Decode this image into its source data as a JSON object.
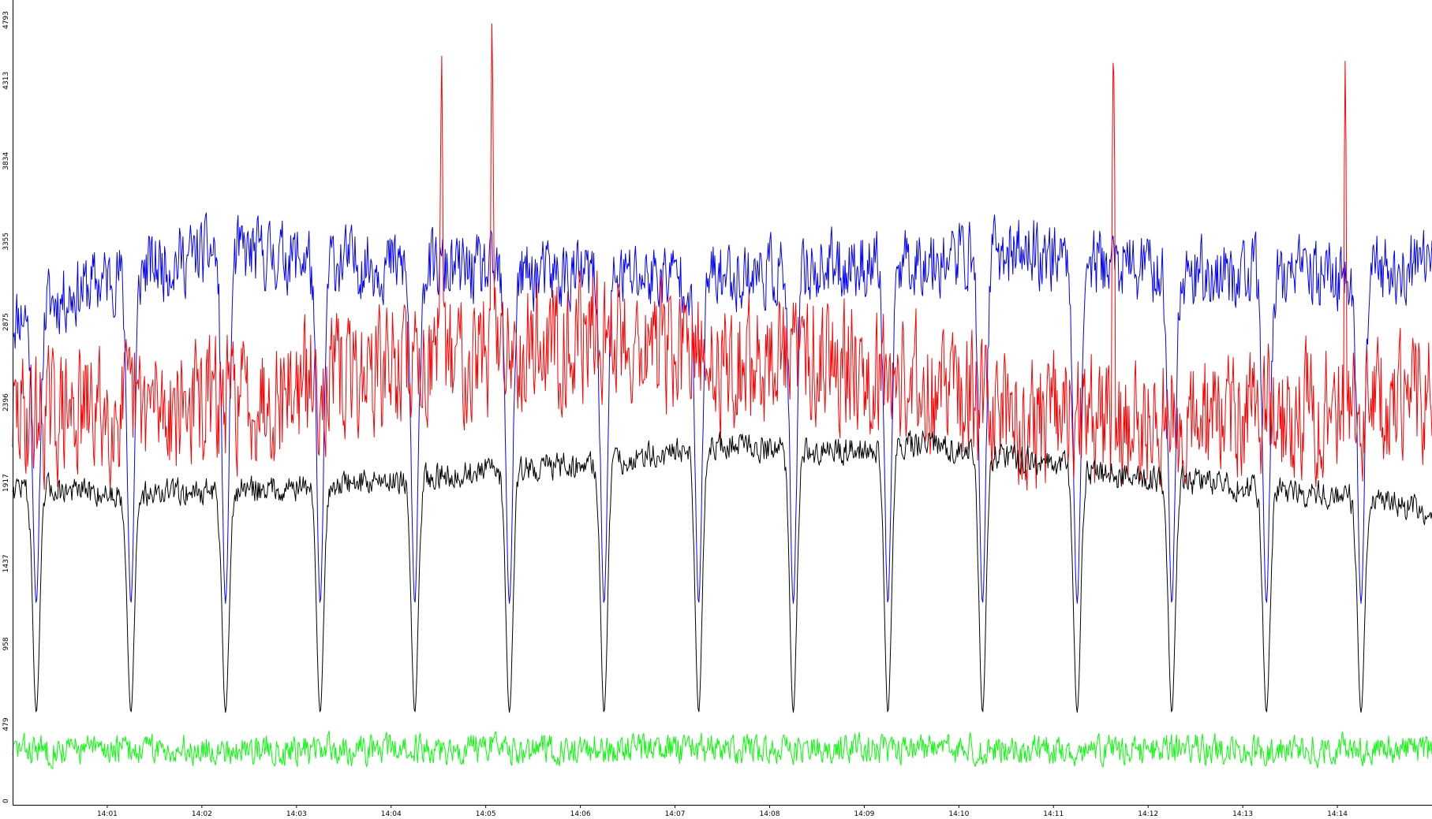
{
  "chart_data": {
    "type": "line",
    "title": "",
    "xlabel": "",
    "ylabel": "",
    "ylim": [
      0,
      4793
    ],
    "xlim": [
      "14:00:00",
      "14:15:00"
    ],
    "yticks": [
      0,
      479,
      958,
      1437,
      1917,
      2396,
      2875,
      3355,
      3834,
      4313,
      4793
    ],
    "xticks": [
      "14:01",
      "14:02",
      "14:03",
      "14:04",
      "14:05",
      "14:06",
      "14:07",
      "14:08",
      "14:09",
      "14:10",
      "14:11",
      "14:12",
      "14:13",
      "14:14"
    ],
    "grid": false,
    "legend": "none",
    "series": [
      {
        "color": "#0000ff",
        "baseline_values": [
          2900,
          3150,
          3300,
          3250,
          3200,
          3150,
          3150,
          3150,
          3200,
          3250,
          3300,
          3200,
          3150,
          3150,
          3200
        ],
        "periodic_dips": {
          "times": [
            "14:00:15",
            "14:01:15",
            "14:02:15",
            "14:03:15",
            "14:04:15",
            "14:05:15",
            "14:06:15",
            "14:07:15",
            "14:08:15",
            "14:09:15",
            "14:10:15",
            "14:11:15",
            "14:12:15",
            "14:13:15",
            "14:14:15"
          ],
          "minimum": 1200
        }
      },
      {
        "color": "#ff0000",
        "baseline_values": [
          2300,
          2350,
          2400,
          2500,
          2650,
          2750,
          2800,
          2600,
          2700,
          2500,
          2300,
          2250,
          2300,
          2350,
          2400
        ],
        "peaks": [
          {
            "time": "14:05:04",
            "value": 4793
          },
          {
            "time": "14:11:38",
            "value": 4700
          },
          {
            "time": "14:04:32",
            "value": 4600
          },
          {
            "time": "14:14:05",
            "value": 4500
          }
        ]
      },
      {
        "color": "#000000",
        "baseline_values": [
          1900,
          1850,
          1870,
          1900,
          1950,
          2000,
          2050,
          2150,
          2100,
          2150,
          2050,
          1950,
          1900,
          1850,
          1750
        ],
        "periodic_dips": {
          "times": [
            "14:00:15",
            "14:01:15",
            "14:02:15",
            "14:03:15",
            "14:04:15",
            "14:05:15",
            "14:06:15",
            "14:07:15",
            "14:08:15",
            "14:09:15",
            "14:10:15",
            "14:11:15",
            "14:12:15",
            "14:13:15",
            "14:14:15"
          ],
          "minimum": 550
        }
      },
      {
        "color": "#00ff00",
        "baseline_values": [
          330,
          330,
          330,
          330,
          330,
          330,
          330,
          330,
          330,
          330,
          330,
          330,
          330,
          330,
          330
        ]
      }
    ]
  }
}
